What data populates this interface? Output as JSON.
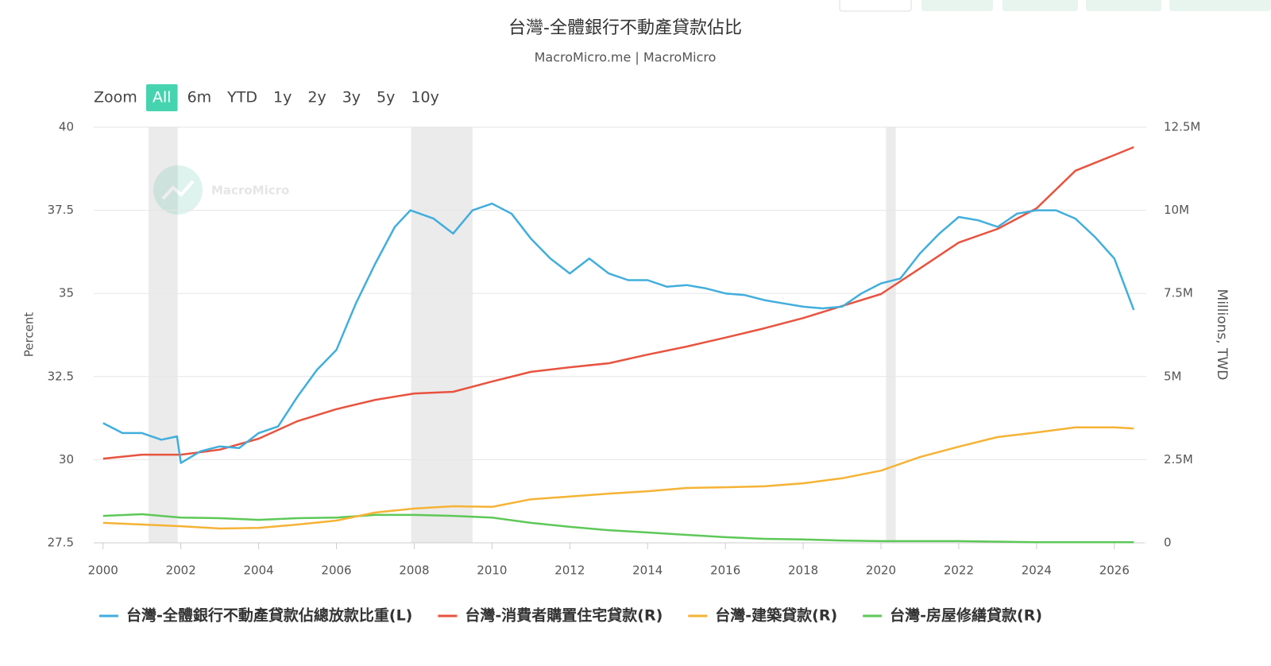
{
  "chart_data": {
    "type": "line",
    "title": "台灣-全體銀行不動產貸款佔比",
    "subtitle": "MacroMicro.me | MacroMicro",
    "watermark": "MacroMicro",
    "zoom_label": "Zoom",
    "zoom_buttons": [
      "All",
      "6m",
      "YTD",
      "1y",
      "2y",
      "3y",
      "5y",
      "10y"
    ],
    "zoom_selected": 0,
    "ylabel": "Percent",
    "y2label": "Millions, TWD",
    "xlim": [
      1999.76,
      2026.76
    ],
    "xticks": [
      2000,
      2002,
      2004,
      2006,
      2008,
      2010,
      2012,
      2014,
      2016,
      2018,
      2020,
      2022,
      2024,
      2026
    ],
    "ylim": [
      27.5,
      40
    ],
    "yticks": [
      27.5,
      30,
      32.5,
      35,
      37.5,
      40
    ],
    "y2lim": [
      0,
      12500000
    ],
    "y2ticks": [
      0,
      {
        "value": 2500000,
        "label": "2.5M"
      },
      {
        "value": 5000000,
        "label": "5M"
      },
      {
        "value": 7500000,
        "label": "7.5M"
      },
      {
        "value": 10000000,
        "label": "10M"
      },
      {
        "value": 12500000,
        "label": "12.5M"
      }
    ],
    "grid": true,
    "shaded_periods": [
      [
        2001.17,
        2001.92
      ],
      [
        2007.92,
        2009.5
      ],
      [
        2020.13,
        2020.38
      ]
    ],
    "legend": "bottom",
    "series": [
      {
        "name": "台灣-全體銀行不動產貸款佔總放款比重(L)",
        "color": "#41aedc",
        "axis": "y",
        "x": [
          2000,
          2000.5,
          2001,
          2001.5,
          2001.9,
          2002,
          2002.5,
          2003,
          2003.5,
          2004,
          2004.5,
          2005,
          2005.5,
          2006,
          2006.5,
          2007,
          2007.5,
          2007.9,
          2008.5,
          2009,
          2009.5,
          2010,
          2010.5,
          2011,
          2011.5,
          2012,
          2012.5,
          2013,
          2013.5,
          2014,
          2014.5,
          2015,
          2015.5,
          2016,
          2016.5,
          2017,
          2017.5,
          2018,
          2018.5,
          2019,
          2019.5,
          2020,
          2020.5,
          2021,
          2021.5,
          2022,
          2022.5,
          2023,
          2023.5,
          2024,
          2024.5,
          2025,
          2025.5,
          2026,
          2026.5
        ],
        "values": [
          31.1,
          30.8,
          30.8,
          30.6,
          30.7,
          29.9,
          30.25,
          30.4,
          30.35,
          30.8,
          31.0,
          31.9,
          32.7,
          33.3,
          34.7,
          35.9,
          37.0,
          37.5,
          37.25,
          36.8,
          37.5,
          37.7,
          37.4,
          36.65,
          36.05,
          35.6,
          36.05,
          35.6,
          35.4,
          35.4,
          35.2,
          35.25,
          35.15,
          35.0,
          34.95,
          34.8,
          34.7,
          34.6,
          34.55,
          34.6,
          35.0,
          35.3,
          35.45,
          36.2,
          36.8,
          37.3,
          37.2,
          37.0,
          37.4,
          37.5,
          37.5,
          37.25,
          36.7,
          36.05,
          34.5
        ]
      },
      {
        "name": "台灣-消費者購置住宅貸款(R)",
        "color": "#e8533f",
        "axis": "y2",
        "x": [
          2000,
          2001,
          2002,
          2003,
          2004,
          2005,
          2006,
          2007,
          2008,
          2009,
          2010,
          2011,
          2012,
          2013,
          2014,
          2015,
          2016,
          2017,
          2018,
          2019,
          2020,
          2021,
          2022,
          2023,
          2024,
          2025,
          2026,
          2026.5
        ],
        "values": [
          2530000,
          2650000,
          2650000,
          2800000,
          3130000,
          3660000,
          4020000,
          4300000,
          4490000,
          4540000,
          4850000,
          5140000,
          5280000,
          5400000,
          5660000,
          5900000,
          6170000,
          6450000,
          6760000,
          7120000,
          7480000,
          8250000,
          9030000,
          9440000,
          10060000,
          11190000,
          11660000,
          11900000
        ]
      },
      {
        "name": "台灣-建築貸款(R)",
        "color": "#f5b335",
        "axis": "y2",
        "x": [
          2000,
          2001,
          2002,
          2003,
          2004,
          2005,
          2006,
          2007,
          2008,
          2009,
          2010,
          2011,
          2012,
          2013,
          2014,
          2015,
          2016,
          2017,
          2018,
          2019,
          2020,
          2021,
          2022,
          2023,
          2024,
          2025,
          2026,
          2026.5
        ],
        "values": [
          600000,
          550000,
          500000,
          430000,
          450000,
          550000,
          670000,
          910000,
          1030000,
          1100000,
          1080000,
          1310000,
          1390000,
          1480000,
          1550000,
          1650000,
          1670000,
          1700000,
          1790000,
          1940000,
          2170000,
          2580000,
          2890000,
          3180000,
          3320000,
          3470000,
          3470000,
          3440000
        ]
      },
      {
        "name": "台灣-房屋修繕貸款(R)",
        "color": "#5ec858",
        "axis": "y2",
        "x": [
          2000,
          2001,
          2002,
          2003,
          2004,
          2005,
          2006,
          2007,
          2008,
          2009,
          2010,
          2011,
          2012,
          2013,
          2014,
          2015,
          2016,
          2017,
          2018,
          2019,
          2020,
          2022,
          2024,
          2026.5
        ],
        "values": [
          810000,
          860000,
          760000,
          740000,
          690000,
          740000,
          760000,
          840000,
          840000,
          810000,
          760000,
          600000,
          480000,
          380000,
          310000,
          240000,
          170000,
          120000,
          100000,
          70000,
          50000,
          50000,
          20000,
          20000
        ]
      }
    ]
  }
}
